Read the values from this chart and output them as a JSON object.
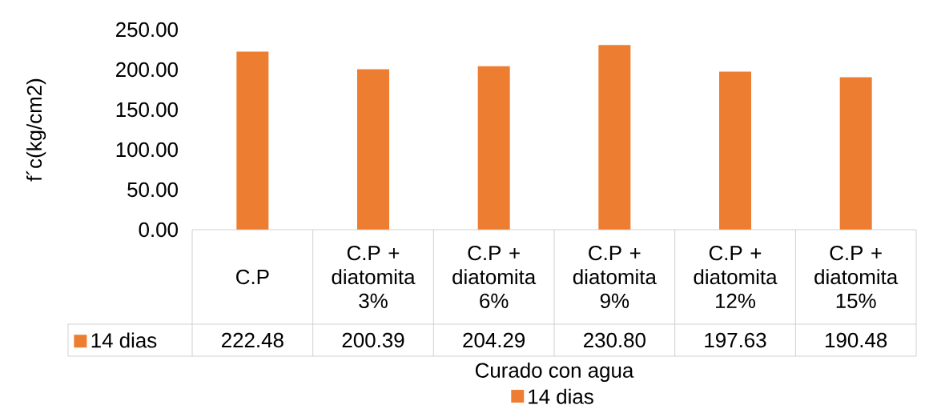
{
  "chart_data": {
    "type": "bar",
    "xlabel": "Curado con agua",
    "ylabel": "f´c(kg/cm2)",
    "categories": [
      "C.P",
      "C.P + diatomita 3%",
      "C.P + diatomita 6%",
      "C.P + diatomita 9%",
      "C.P + diatomita 12%",
      "C.P + diatomita 15%"
    ],
    "series": [
      {
        "name": "14 dias",
        "color": "#ed7d31",
        "values": [
          222.48,
          200.39,
          204.29,
          230.8,
          197.63,
          190.48
        ],
        "value_labels": [
          "222.48",
          "200.39",
          "204.29",
          "230.80",
          "197.63",
          "190.48"
        ]
      }
    ],
    "ylim": [
      0,
      250
    ],
    "yticks": [
      {
        "value": 0,
        "label": "0.00"
      },
      {
        "value": 50,
        "label": "50.00"
      },
      {
        "value": 100,
        "label": "100.00"
      },
      {
        "value": 150,
        "label": "150.00"
      },
      {
        "value": 200,
        "label": "200.00"
      },
      {
        "value": 250,
        "label": "250.00"
      }
    ],
    "grid": false,
    "legend": "bottom"
  }
}
